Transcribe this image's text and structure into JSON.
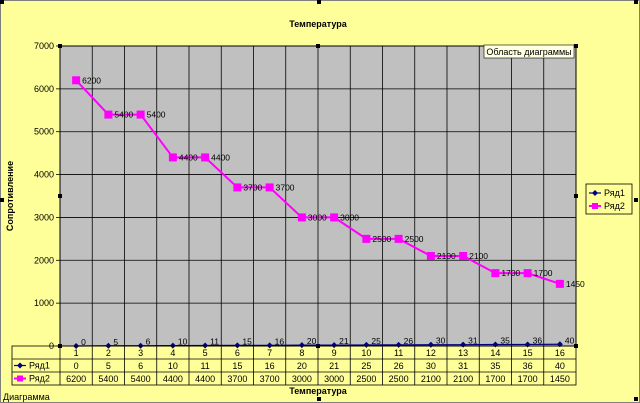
{
  "colors": {
    "chart_area": "#ffff99",
    "plot_area": "#c0c0c0",
    "series1": "#000080",
    "series2": "#ff00ff"
  },
  "chart_data": {
    "type": "line",
    "title": "Температура",
    "xlabel": "Температура",
    "ylabel": "Сопротивление",
    "ylim": [
      0,
      7000
    ],
    "yticks": [
      0,
      1000,
      2000,
      3000,
      4000,
      5000,
      6000,
      7000
    ],
    "categories": [
      "1",
      "2",
      "3",
      "4",
      "5",
      "6",
      "7",
      "8",
      "9",
      "10",
      "11",
      "12",
      "13",
      "14",
      "15",
      "16"
    ],
    "series": [
      {
        "name": "Ряд1",
        "values": [
          0,
          5,
          6,
          10,
          11,
          15,
          16,
          20,
          21,
          25,
          26,
          30,
          31,
          35,
          36,
          40
        ]
      },
      {
        "name": "Ряд2",
        "values": [
          6200,
          5400,
          5400,
          4400,
          4400,
          3700,
          3700,
          3000,
          3000,
          2500,
          2500,
          2100,
          2100,
          1700,
          1700,
          1450
        ]
      }
    ],
    "grid": true,
    "legend_position": "right",
    "data_table": true
  },
  "plot_area_tooltip": "Область диаграммы",
  "corner_label": "Диаграмма"
}
